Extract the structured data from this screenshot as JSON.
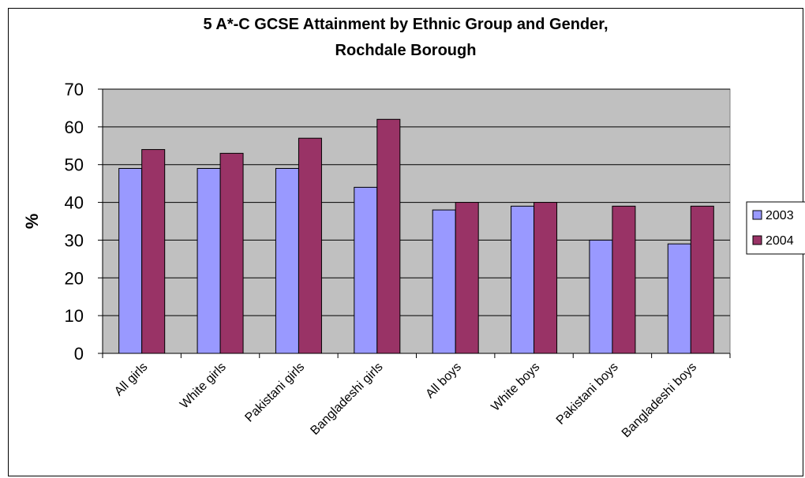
{
  "chart_data": {
    "type": "bar",
    "title": "5 A*-C GCSE Attainment by Ethnic Group and Gender,",
    "subtitle": "Rochdale Borough",
    "xlabel": "",
    "ylabel": "%",
    "ylim": [
      0,
      70
    ],
    "yticks": [
      0,
      10,
      20,
      30,
      40,
      50,
      60,
      70
    ],
    "grid": true,
    "legend_position": "right",
    "categories": [
      "All girls",
      "White girls",
      "Pakistani girls",
      "Bangladeshi girls",
      "All boys",
      "White boys",
      "Pakistani boys",
      "Bangladeshi boys"
    ],
    "series": [
      {
        "name": "2003",
        "color": "#9999FF",
        "values": [
          49,
          49,
          49,
          44,
          38,
          39,
          30,
          29
        ]
      },
      {
        "name": "2004",
        "color": "#993366",
        "values": [
          54,
          53,
          57,
          62,
          40,
          40,
          39,
          39
        ]
      }
    ],
    "plot_background": "#C0C0C0"
  }
}
